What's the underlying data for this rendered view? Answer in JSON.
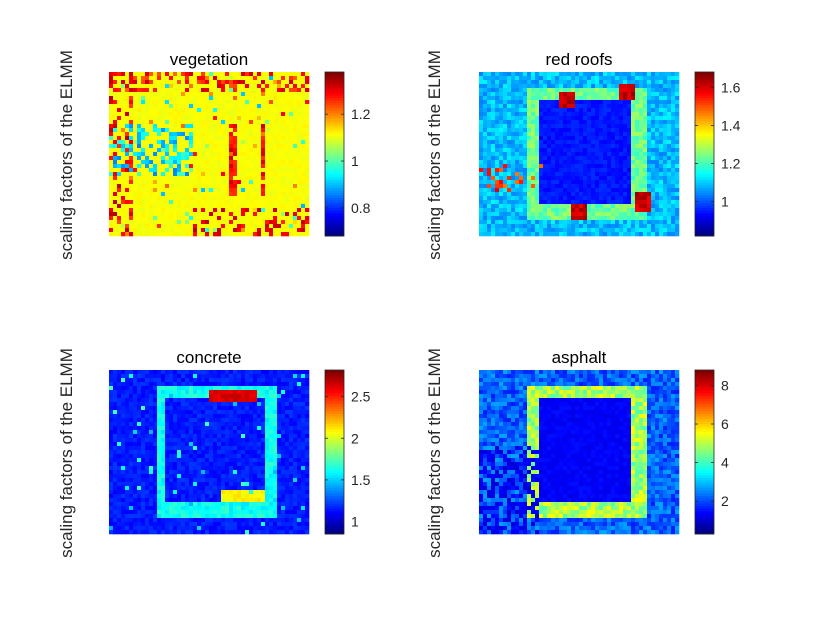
{
  "chart_data": [
    {
      "type": "heatmap",
      "title": "vegetation",
      "ylabel": "scaling factors of the ELMM",
      "colormap": "jet",
      "colorbar": {
        "range": [
          0.68,
          1.38
        ],
        "ticks": [
          0.8,
          1,
          1.2
        ],
        "tick_labels": [
          "0.8",
          "1",
          "1.2"
        ]
      },
      "image_description": "mostly uniform scaling near 1 over the scene, higher values (red/orange) along building edges and stadium stands, lower values (blue) in scattered urban patches"
    },
    {
      "type": "heatmap",
      "title": "red roofs",
      "ylabel": "scaling factors of the ELMM",
      "colormap": "jet",
      "colorbar": {
        "range": [
          0.82,
          1.68
        ],
        "ticks": [
          1,
          1.2,
          1.4,
          1.6
        ],
        "tick_labels": [
          "1",
          "1.2",
          "1.4",
          "1.6"
        ]
      },
      "image_description": "stadium outline visible, highest values (red) at the four stadium corner roofs, low values (blue) inside the pitch"
    },
    {
      "type": "heatmap",
      "title": "concrete",
      "ylabel": "scaling factors of the ELMM",
      "colormap": "jet",
      "colorbar": {
        "range": [
          0.85,
          2.82
        ],
        "ticks": [
          1,
          1.5,
          2,
          2.5
        ],
        "tick_labels": [
          "1",
          "1.5",
          "2",
          "2.5"
        ]
      },
      "image_description": "mostly low values (dark blue), highest values on the north stand (red) and south stand (yellow), cyan along east and west stands"
    },
    {
      "type": "heatmap",
      "title": "asphalt",
      "ylabel": "scaling factors of the ELMM",
      "colormap": "jet",
      "colorbar": {
        "range": [
          0.3,
          8.8
        ],
        "ticks": [
          2,
          4,
          6,
          8
        ],
        "tick_labels": [
          "2",
          "4",
          "6",
          "8"
        ]
      },
      "image_description": "stadium stands in cyan/yellow-green, pitch dark blue, surroundings mixed blue/cyan"
    }
  ],
  "colors": {
    "jet_low": "#00008f",
    "jet_mid": "#7fff7f",
    "jet_high": "#800000"
  }
}
